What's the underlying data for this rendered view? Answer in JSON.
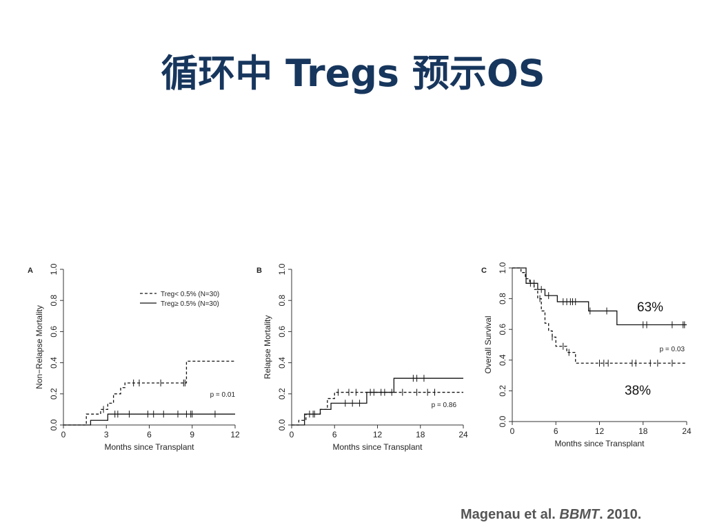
{
  "slide": {
    "title": "循环中 Tregs 预示OS",
    "citation": {
      "authors": "Magenau et al. ",
      "journal": "BBMT",
      "year": ". 2010."
    },
    "annotations": {
      "os_high": "63%",
      "os_low": "38%"
    }
  },
  "chart_data": [
    {
      "panel": "A",
      "type": "line",
      "step": true,
      "xlabel": "Months since Transplant",
      "ylabel": "Non−Relapse Mortality",
      "xlim": [
        0,
        12
      ],
      "ylim": [
        0,
        1
      ],
      "xticks": [
        0,
        3,
        6,
        9,
        12
      ],
      "yticks": [
        0.0,
        0.2,
        0.4,
        0.6,
        0.8,
        1.0
      ],
      "ytick_labels": [
        "0.0",
        "0.2",
        "0.4",
        "0.6",
        "0.8",
        "1.0"
      ],
      "pvalue": "p = 0.01",
      "legend": [
        "Treg< 0.5% (N=30)",
        "Treg≥ 0.5% (N=30)"
      ],
      "series": [
        {
          "name": "Treg< 0.5% (N=30)",
          "dash": true,
          "x": [
            0,
            1.6,
            2.6,
            3.1,
            3.5,
            4.0,
            4.3,
            8.6,
            12
          ],
          "y": [
            0,
            0.07,
            0.1,
            0.14,
            0.2,
            0.24,
            0.27,
            0.41,
            0.41
          ],
          "censor": [
            2.8,
            4.9,
            5.3,
            6.8,
            8.4,
            8.5
          ]
        },
        {
          "name": "Treg≥ 0.5% (N=30)",
          "dash": false,
          "x": [
            0,
            1.9,
            3.1,
            12
          ],
          "y": [
            0,
            0.03,
            0.07,
            0.07
          ],
          "censor": [
            3.6,
            3.8,
            4.6,
            5.9,
            6.3,
            7.0,
            8.0,
            8.6,
            8.9,
            9.0,
            10.6
          ]
        }
      ]
    },
    {
      "panel": "B",
      "type": "line",
      "step": true,
      "xlabel": "Months since Transplant",
      "ylabel": "Relapse Mortality",
      "xlim": [
        0,
        24
      ],
      "ylim": [
        0,
        1
      ],
      "xticks": [
        0,
        6,
        12,
        18,
        24
      ],
      "yticks": [
        0.0,
        0.2,
        0.4,
        0.6,
        0.8,
        1.0
      ],
      "ytick_labels": [
        "0.0",
        "0.2",
        "0.4",
        "0.6",
        "0.8",
        "1.0"
      ],
      "pvalue": "p = 0.86",
      "series": [
        {
          "name": "Treg< 0.5%",
          "dash": true,
          "x": [
            0,
            1.0,
            2.0,
            4.0,
            5.0,
            6.0,
            24
          ],
          "y": [
            0,
            0.03,
            0.07,
            0.1,
            0.17,
            0.21,
            0.21
          ],
          "censor": [
            3.0,
            6.5,
            8.0,
            9.0,
            11.0,
            12.5,
            14.0,
            15.5,
            17.5,
            19.0,
            20.0
          ]
        },
        {
          "name": "Treg≥ 0.5%",
          "dash": false,
          "x": [
            0,
            1.8,
            4.0,
            5.5,
            10.5,
            14.3,
            24
          ],
          "y": [
            0,
            0.07,
            0.1,
            0.14,
            0.21,
            0.3,
            0.3
          ],
          "censor": [
            2.5,
            3.2,
            7.5,
            8.5,
            9.5,
            11.5,
            13.0,
            17.0,
            17.5,
            18.5
          ]
        }
      ]
    },
    {
      "panel": "C",
      "type": "line",
      "step": true,
      "xlabel": "Months since Transplant",
      "ylabel": "Overall Survival",
      "xlim": [
        0,
        24
      ],
      "ylim": [
        0,
        1
      ],
      "xticks": [
        0,
        6,
        12,
        18,
        24
      ],
      "yticks": [
        0.0,
        0.2,
        0.4,
        0.6,
        0.8,
        1.0
      ],
      "ytick_labels": [
        "0.0",
        "0.2",
        "0.4",
        "0.6",
        "0.8",
        "1.0"
      ],
      "pvalue": "p = 0.03",
      "series": [
        {
          "name": "Treg< 0.5%",
          "dash": true,
          "x": [
            0,
            1.2,
            1.8,
            2.4,
            3.0,
            3.5,
            4.0,
            4.5,
            5.0,
            5.5,
            6.0,
            7.5,
            8.7,
            24
          ],
          "y": [
            1.0,
            0.97,
            0.93,
            0.9,
            0.86,
            0.8,
            0.72,
            0.64,
            0.59,
            0.55,
            0.49,
            0.45,
            0.38,
            0.38
          ],
          "censor": [
            3.8,
            5.5,
            7.0,
            7.8,
            12.0,
            12.6,
            13.2,
            16.5,
            17.0,
            19.0,
            20.0,
            22.0
          ]
        },
        {
          "name": "Treg≥ 0.5%",
          "dash": false,
          "x": [
            0,
            1.9,
            3.5,
            4.5,
            6.2,
            10.5,
            14.4,
            24
          ],
          "y": [
            1.0,
            0.9,
            0.86,
            0.82,
            0.78,
            0.72,
            0.63,
            0.63
          ],
          "censor": [
            2.5,
            3.0,
            4.0,
            5.0,
            7.0,
            7.5,
            8.0,
            8.3,
            8.7,
            10.7,
            13.0,
            18.0,
            18.5,
            22.0,
            23.5,
            23.7
          ]
        }
      ]
    }
  ]
}
